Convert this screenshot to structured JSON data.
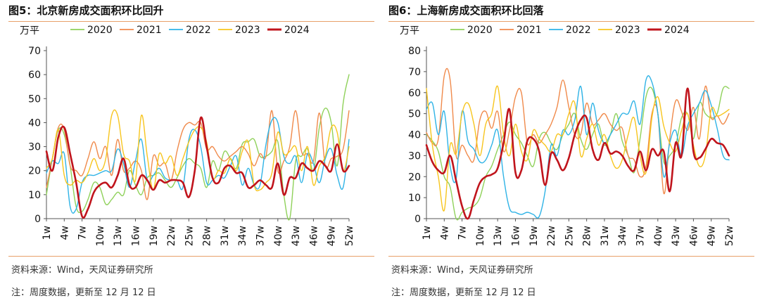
{
  "charts": [
    {
      "title": "图5：北京新房成交面积环比回升",
      "source": "资料来源：Wind，天风证券研究所",
      "note": "注：周度数据，更新至 12 月 12 日",
      "chart_data": {
        "type": "line",
        "ylabel": "万平",
        "ylim": [
          0,
          70
        ],
        "yticks": [
          "0",
          "10",
          "20",
          "30",
          "40",
          "50",
          "60",
          "70"
        ],
        "xticks": [
          "1w",
          "4w",
          "7w",
          "10w",
          "13w",
          "16w",
          "19w",
          "22w",
          "25w",
          "28w",
          "31w",
          "34w",
          "37w",
          "40w",
          "43w",
          "46w",
          "49w",
          "52w"
        ],
        "legend_position": "top",
        "grid": false,
        "series": [
          {
            "name": "2020",
            "color": "#8fd15a",
            "width": 1.4,
            "values": [
              10,
              25,
              37,
              35,
              22,
              5,
              3,
              8,
              15,
              13,
              6,
              8,
              11,
              10,
              20,
              14,
              10,
              17,
              18,
              19,
              16,
              13,
              17,
              22,
              25,
              23,
              21,
              13,
              24,
              20,
              28,
              25,
              21,
              31,
              32,
              33,
              26,
              26,
              28,
              32,
              10,
              0,
              24,
              26,
              29,
              20,
              38,
              46,
              40,
              22,
              48,
              60
            ]
          },
          {
            "name": "2021",
            "color": "#f08a4b",
            "width": 1.4,
            "values": [
              13,
              25,
              38,
              37,
              22,
              20,
              18,
              25,
              32,
              25,
              30,
              18,
              33,
              20,
              21,
              24,
              20,
              8,
              26,
              22,
              23,
              16,
              28,
              37,
              40,
              39,
              40,
              29,
              30,
              26,
              24,
              26,
              28,
              30,
              27,
              22,
              27,
              26,
              45,
              20,
              24,
              30,
              45,
              28,
              27,
              24,
              44,
              22,
              25,
              26,
              29,
              45
            ]
          },
          {
            "name": "2022",
            "color": "#2fb3e6",
            "width": 1.4,
            "values": [
              19,
              24,
              23,
              27,
              5,
              4,
              15,
              18,
              18,
              19,
              20,
              20,
              29,
              23,
              13,
              24,
              33,
              16,
              18,
              21,
              17,
              16,
              16,
              13,
              33,
              37,
              30,
              15,
              16,
              18,
              17,
              22,
              26,
              14,
              21,
              14,
              14,
              31,
              41,
              40,
              26,
              23,
              26,
              15,
              27,
              23,
              15,
              25,
              29,
              18,
              13,
              33
            ]
          },
          {
            "name": "2023",
            "color": "#f7c51e",
            "width": 1.4,
            "values": [
              21,
              25,
              37,
              18,
              14,
              16,
              15,
              19,
              25,
              20,
              25,
              43,
              43,
              27,
              24,
              16,
              43,
              26,
              12,
              27,
              23,
              26,
              18,
              25,
              32,
              37,
              38,
              32,
              17,
              20,
              19,
              25,
              20,
              28,
              32,
              14,
              12,
              15,
              19,
              36,
              27,
              28,
              30,
              20,
              30,
              14,
              22,
              26,
              38,
              36,
              20,
              30
            ]
          },
          {
            "name": "2024",
            "color": "#c0141c",
            "width": 2.6,
            "values": [
              28,
              20,
              34,
              38,
              27,
              15,
              1,
              4,
              11,
              14,
              15,
              13,
              18,
              25,
              14,
              13,
              18,
              16,
              12,
              16,
              15,
              16,
              16,
              15,
              9,
              20,
              42,
              30,
              17,
              15,
              21,
              22,
              19,
              19,
              13,
              14,
              16,
              14,
              13,
              23,
              10,
              17,
              17,
              23,
              21,
              20,
              24,
              22,
              20,
              31,
              20,
              22
            ]
          }
        ]
      }
    },
    {
      "title": "图6：上海新房成交面积环比回落",
      "source": "资料来源：Wind，天风证券研究所",
      "note": "注：周度数据，更新至 12 月 12 日",
      "chart_data": {
        "type": "line",
        "ylabel": "万平",
        "ylim": [
          0,
          80
        ],
        "yticks": [
          "0",
          "10",
          "20",
          "30",
          "40",
          "50",
          "60",
          "70",
          "80"
        ],
        "xticks": [
          "1w",
          "4w",
          "7w",
          "10w",
          "13w",
          "16w",
          "19w",
          "22w",
          "25w",
          "28w",
          "31w",
          "34w",
          "37w",
          "40w",
          "43w",
          "46w",
          "49w",
          "52w"
        ],
        "legend_position": "top",
        "grid": false,
        "series": [
          {
            "name": "2020",
            "color": "#8fd15a",
            "width": 1.4,
            "values": [
              40,
              37,
              32,
              20,
              15,
              0,
              3,
              5,
              6,
              10,
              20,
              25,
              33,
              40,
              46,
              40,
              36,
              30,
              25,
              38,
              41,
              36,
              33,
              40,
              45,
              50,
              38,
              33,
              40,
              45,
              35,
              40,
              50,
              37,
              30,
              22,
              38,
              58,
              62,
              50,
              27,
              30,
              35,
              48,
              50,
              38,
              55,
              50,
              48,
              50,
              62,
              62
            ]
          },
          {
            "name": "2021",
            "color": "#f08a4b",
            "width": 1.4,
            "values": [
              41,
              36,
              38,
              68,
              66,
              30,
              35,
              30,
              28,
              47,
              51,
              43,
              51,
              32,
              42,
              58,
              60,
              36,
              40,
              36,
              40,
              45,
              53,
              66,
              53,
              40,
              40,
              55,
              45,
              47,
              50,
              45,
              42,
              43,
              30,
              28,
              20,
              25,
              50,
              50,
              12,
              38,
              56,
              51,
              42,
              53,
              38,
              63,
              48,
              49,
              45,
              50
            ]
          },
          {
            "name": "2022",
            "color": "#2fb3e6",
            "width": 1.4,
            "values": [
              52,
              55,
              40,
              51,
              25,
              19,
              51,
              37,
              33,
              27,
              28,
              35,
              42,
              20,
              5,
              3,
              2,
              3,
              2,
              1,
              13,
              35,
              30,
              42,
              40,
              47,
              63,
              40,
              55,
              42,
              36,
              40,
              45,
              50,
              50,
              56,
              45,
              66,
              65,
              50,
              20,
              36,
              42,
              30,
              44,
              50,
              55,
              61,
              54,
              43,
              30,
              28
            ]
          },
          {
            "name": "2023",
            "color": "#f7c51e",
            "width": 1.4,
            "values": [
              62,
              35,
              20,
              4,
              35,
              31,
              50,
              55,
              45,
              30,
              45,
              50,
              63,
              40,
              30,
              45,
              32,
              28,
              42,
              38,
              35,
              32,
              40,
              40,
              50,
              55,
              30,
              38,
              45,
              35,
              40,
              30,
              24,
              28,
              40,
              48,
              30,
              22,
              48,
              58,
              44,
              36,
              32,
              42,
              50,
              35,
              25,
              30,
              52,
              49,
              50,
              52
            ]
          },
          {
            "name": "2024",
            "color": "#c0141c",
            "width": 2.6,
            "values": [
              35,
              27,
              23,
              22,
              30,
              18,
              6,
              0,
              9,
              17,
              20,
              21,
              24,
              36,
              52,
              22,
              23,
              37,
              38,
              32,
              16,
              31,
              28,
              23,
              29,
              40,
              47,
              48,
              33,
              28,
              36,
              31,
              32,
              30,
              25,
              23,
              32,
              23,
              33,
              30,
              32,
              13,
              36,
              30,
              62,
              32,
              29,
              33,
              38,
              36,
              35,
              30
            ]
          }
        ]
      }
    }
  ]
}
